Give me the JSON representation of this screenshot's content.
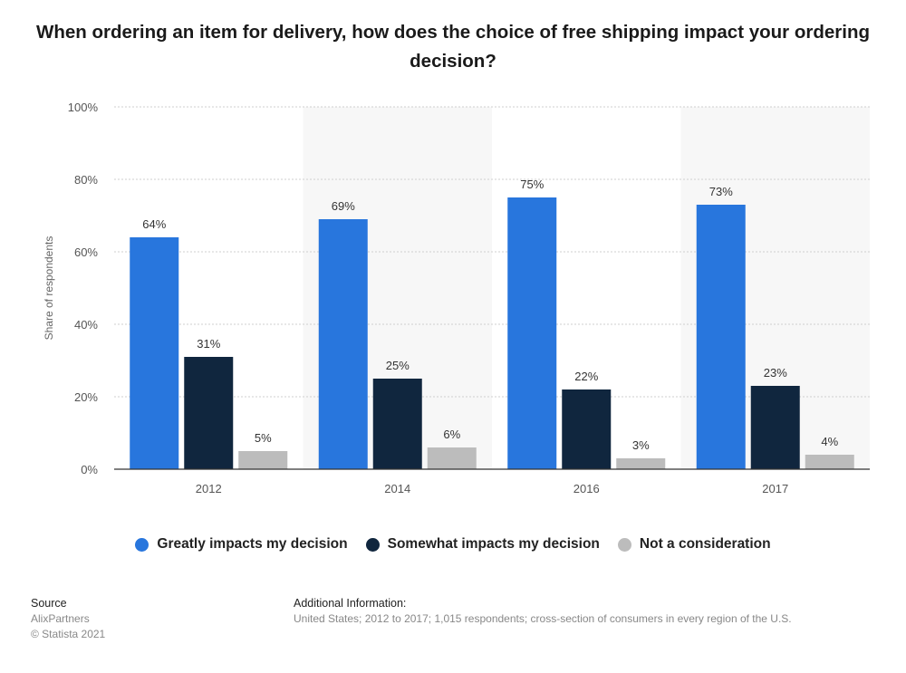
{
  "title": "When ordering an item for delivery, how does the choice of free shipping impact your ordering decision?",
  "chart_data": {
    "type": "bar",
    "categories": [
      "2012",
      "2014",
      "2016",
      "2017"
    ],
    "series": [
      {
        "name": "Greatly impacts my decision",
        "color": "#2876dd",
        "values": [
          64,
          69,
          75,
          73
        ]
      },
      {
        "name": "Somewhat impacts my decision",
        "color": "#10263e",
        "values": [
          31,
          25,
          22,
          23
        ]
      },
      {
        "name": "Not a consideration",
        "color": "#bcbcbc",
        "values": [
          5,
          6,
          3,
          4
        ]
      }
    ],
    "ylabel": "Share of respondents",
    "xlabel": "",
    "ylim": [
      0,
      100
    ],
    "yticks": [
      "0%",
      "20%",
      "40%",
      "60%",
      "80%",
      "100%"
    ],
    "value_suffix": "%",
    "grid": true,
    "legend_position": "bottom"
  },
  "footer": {
    "source_heading": "Source",
    "source_name": "AlixPartners",
    "copyright": "© Statista 2021",
    "info_heading": "Additional Information:",
    "info_text": "United States; 2012 to 2017; 1,015 respondents; cross-section of consumers in every region of the U.S."
  }
}
